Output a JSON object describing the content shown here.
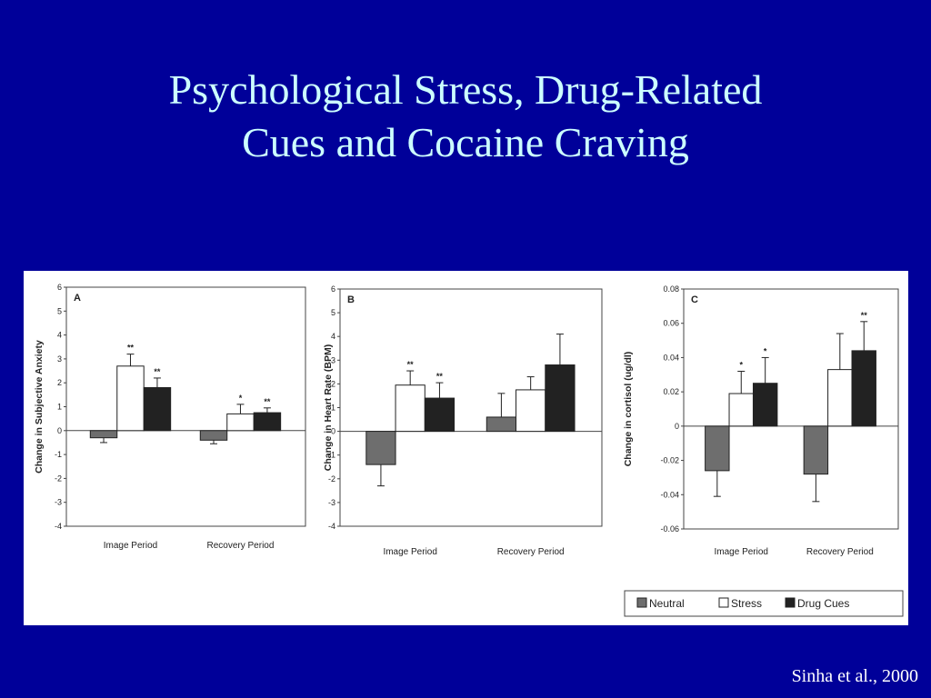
{
  "title": {
    "line1": "Psychological Stress, Drug-Related",
    "line2": "Cues and Cocaine Craving"
  },
  "citation": "Sinha et al., 2000",
  "legend": {
    "items": [
      {
        "label": "Neutral",
        "color": "#6e6e6e"
      },
      {
        "label": "Stress",
        "color": "#ffffff"
      },
      {
        "label": "Drug Cues",
        "color": "#222222"
      }
    ]
  },
  "chart_data": [
    {
      "type": "bar",
      "panel_label": "A",
      "ylabel": "Change in Subjective Anxiety",
      "ylim": [
        -4,
        6
      ],
      "yticks": [
        "6",
        "5",
        "4",
        "3",
        "2",
        "1",
        "0",
        "-1",
        "-2",
        "-3",
        "-4"
      ],
      "categories": [
        "Image Period",
        "Recovery Period"
      ],
      "series": [
        {
          "name": "Neutral",
          "values": [
            -0.3,
            -0.4
          ],
          "errors": [
            0.2,
            0.15
          ],
          "sig": [
            "",
            ""
          ]
        },
        {
          "name": "Stress",
          "values": [
            2.7,
            0.7
          ],
          "errors": [
            0.5,
            0.4
          ],
          "sig": [
            "**",
            "*"
          ]
        },
        {
          "name": "Drug Cues",
          "values": [
            1.8,
            0.75
          ],
          "errors": [
            0.4,
            0.2
          ],
          "sig": [
            "**",
            "**"
          ]
        }
      ]
    },
    {
      "type": "bar",
      "panel_label": "B",
      "ylabel": "Change in Heart Rate (BPM)",
      "ylim": [
        -4,
        6
      ],
      "yticks": [
        "6",
        "5",
        "4",
        "3",
        "2",
        "1",
        "0",
        "-1",
        "-2",
        "-3",
        "-4"
      ],
      "categories": [
        "Image Period",
        "Recovery Period"
      ],
      "series": [
        {
          "name": "Neutral",
          "values": [
            -1.4,
            0.6
          ],
          "errors": [
            0.9,
            1.0
          ],
          "sig": [
            "",
            ""
          ]
        },
        {
          "name": "Stress",
          "values": [
            1.95,
            1.75
          ],
          "errors": [
            0.6,
            0.55
          ],
          "sig": [
            "**",
            ""
          ]
        },
        {
          "name": "Drug Cues",
          "values": [
            1.4,
            2.8
          ],
          "errors": [
            0.65,
            1.3
          ],
          "sig": [
            "**",
            ""
          ]
        }
      ]
    },
    {
      "type": "bar",
      "panel_label": "C",
      "ylabel": "Change in cortisol (ug/dl)",
      "ylim": [
        -0.06,
        0.08
      ],
      "yticks": [
        "0.08",
        "0.06",
        "0.04",
        "0.02",
        "0",
        "-0.02",
        "-0.04",
        "-0.06"
      ],
      "categories": [
        "Image Period",
        "Recovery Period"
      ],
      "series": [
        {
          "name": "Neutral",
          "values": [
            -0.026,
            -0.028
          ],
          "errors": [
            0.015,
            0.016
          ],
          "sig": [
            "",
            ""
          ]
        },
        {
          "name": "Stress",
          "values": [
            0.019,
            0.033
          ],
          "errors": [
            0.013,
            0.021
          ],
          "sig": [
            "*",
            ""
          ]
        },
        {
          "name": "Drug Cues",
          "values": [
            0.025,
            0.044
          ],
          "errors": [
            0.015,
            0.017
          ],
          "sig": [
            "*",
            "**"
          ]
        }
      ]
    }
  ]
}
